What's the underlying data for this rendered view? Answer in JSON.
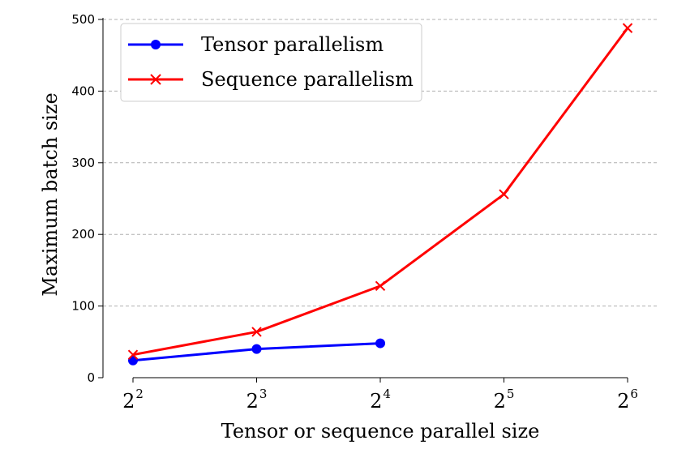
{
  "chart_data": {
    "type": "line",
    "xlabel": "Tensor or sequence parallel size",
    "ylabel": "Maximum batch size",
    "x_ticks": [
      {
        "base": "2",
        "exp": "2"
      },
      {
        "base": "2",
        "exp": "3"
      },
      {
        "base": "2",
        "exp": "4"
      },
      {
        "base": "2",
        "exp": "5"
      },
      {
        "base": "2",
        "exp": "6"
      }
    ],
    "y_ticks": [
      "0",
      "100",
      "200",
      "300",
      "400",
      "500"
    ],
    "ylim": [
      0,
      500
    ],
    "x_log2_range": [
      2,
      6
    ],
    "grid": "horizontal dashed",
    "legend_position": "top-left",
    "series": [
      {
        "name": "Tensor parallelism",
        "color": "#0000ff",
        "marker": "circle",
        "x": [
          4,
          8,
          16
        ],
        "y": [
          24,
          40,
          48
        ]
      },
      {
        "name": "Sequence parallelism",
        "color": "#ff0000",
        "marker": "x",
        "x": [
          4,
          8,
          16,
          32,
          64
        ],
        "y": [
          32,
          64,
          128,
          256,
          488
        ]
      }
    ]
  }
}
